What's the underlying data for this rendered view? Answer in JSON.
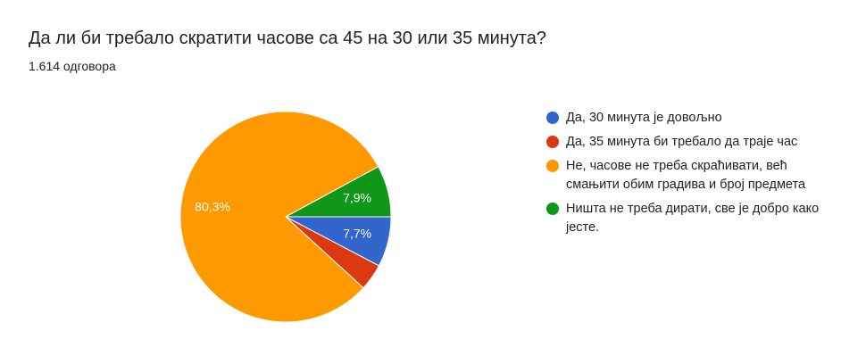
{
  "chart_data": {
    "type": "pie",
    "title": "Да ли би требало скратити часове са 45 на 30 или 35 минута?",
    "subtitle": "1.614 одговора",
    "categories": [
      "Да, 30 минута је довољно",
      "Да, 35 минута би требало да траје час",
      "Не, часове не треба скраћивати, већ смањити обим градива и број предмета",
      "Ништа не треба дирати, све је добро како јесте."
    ],
    "values": [
      7.7,
      4.1,
      80.3,
      7.9
    ],
    "value_labels": [
      "7,7%",
      null,
      "80,3%",
      "7,9%"
    ],
    "colors": [
      "#3366cc",
      "#dc3912",
      "#ff9900",
      "#109618"
    ],
    "legend": "right"
  }
}
